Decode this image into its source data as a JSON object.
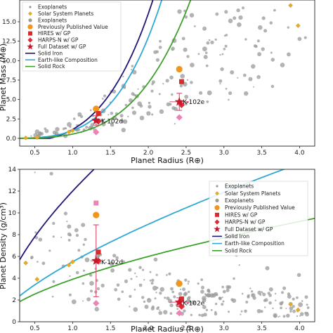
{
  "colors": {
    "exoplanet": "#9a9a9a",
    "solar": "#e2a92a",
    "previous": "#f0961e",
    "hires": "#d92c2c",
    "harpsn": "#e02a35",
    "full": "#c8172b",
    "ppv_pink": "#ee82b4",
    "iron": "#1e1578",
    "earth": "#2ea8d6",
    "rock": "#3fa02b"
  },
  "chart_data": [
    {
      "type": "scatter",
      "panel": "top",
      "xlabel": "Planet Radius (R⊕)",
      "ylabel": "Planet Mass (M⊕)",
      "xlim": [
        0.3,
        4.2
      ],
      "ylim": [
        -1.0,
        17.8
      ],
      "xticks": [
        "0.5",
        "1.0",
        "1.5",
        "2.0",
        "2.5",
        "3.0",
        "3.5",
        "4.0"
      ],
      "yticks": [
        "0.0",
        "2.5",
        "5.0",
        "7.5",
        "10.0",
        "12.5",
        "15.0"
      ],
      "legend": [
        "Exoplanets",
        "Solar System Planets",
        "Exoplanets",
        "Previously Published Value",
        "HIRES w/ GP",
        "HARPS-N w/ GP",
        "Full Dataset w/ GP",
        "Solid Iron",
        "Earth-like Composition",
        "Solid Rock"
      ],
      "legend_position": "top-left",
      "annotations": [
        {
          "label": "K-102d",
          "x": 1.34,
          "y": 2.2
        },
        {
          "label": "K-102e",
          "x": 2.42,
          "y": 4.7
        }
      ],
      "solar_system": [
        {
          "x": 0.38,
          "y": 0.06
        },
        {
          "x": 0.53,
          "y": 0.11
        },
        {
          "x": 0.95,
          "y": 0.82
        },
        {
          "x": 1.0,
          "y": 1.0
        },
        {
          "x": 3.88,
          "y": 17.1
        },
        {
          "x": 3.98,
          "y": 14.5
        }
      ],
      "planets": [
        {
          "name": "K-102d",
          "previous": 3.8,
          "hires": 3.2,
          "harpsn": 2.2,
          "full": 2.3,
          "full_err": 0.6,
          "ppv_pink": 0.8,
          "x": 1.31
        },
        {
          "name": "K-102e",
          "previous": 8.9,
          "hires": 7.3,
          "harpsn": 4.3,
          "full": 4.7,
          "full_err": 1.1,
          "ppv_pink": 2.7,
          "x": 2.41
        }
      ]
    },
    {
      "type": "scatter",
      "panel": "bottom",
      "xlabel": "Planet Radius (R⊕)",
      "ylabel": "Planet Density (g/cm³)",
      "xlim": [
        0.3,
        4.2
      ],
      "ylim": [
        0,
        14
      ],
      "xticks": [
        "0.5",
        "1.0",
        "1.5",
        "2.0",
        "2.5",
        "3.0",
        "3.5",
        "4.0"
      ],
      "yticks": [
        "0",
        "2",
        "4",
        "6",
        "8",
        "10",
        "12",
        "14"
      ],
      "legend": [
        "Exoplanets",
        "Solar System Planets",
        "Exoplanets",
        "Previously Published Value",
        "HIRES w/ GP",
        "HARPS-N w/ GP",
        "Full Dataset w/ GP",
        "Solid Iron",
        "Earth-like Composition",
        "Solid Rock"
      ],
      "legend_position": "top-right",
      "annotations": [
        {
          "label": "K-102d",
          "x": 1.34,
          "y": 5.5
        },
        {
          "label": "K-102e",
          "x": 2.42,
          "y": 1.7
        }
      ],
      "solar_system": [
        {
          "x": 0.38,
          "y": 5.4
        },
        {
          "x": 0.53,
          "y": 3.9
        },
        {
          "x": 0.95,
          "y": 5.2
        },
        {
          "x": 1.0,
          "y": 5.5
        },
        {
          "x": 3.88,
          "y": 1.6
        },
        {
          "x": 3.98,
          "y": 1.1
        }
      ],
      "planets": [
        {
          "name": "K-102d",
          "previous": 9.8,
          "hires": 6.4,
          "harpsn": 5.6,
          "full": 5.6,
          "full_err": 3.3,
          "ppv_pink": 1.7,
          "ppv_square": 10.9,
          "x": 1.31
        },
        {
          "name": "K-102e",
          "previous": 3.5,
          "hires": 2.1,
          "harpsn": 1.4,
          "full": 1.8,
          "full_err": 0.4,
          "ppv_pink": 0.8,
          "x": 2.41
        }
      ]
    }
  ]
}
